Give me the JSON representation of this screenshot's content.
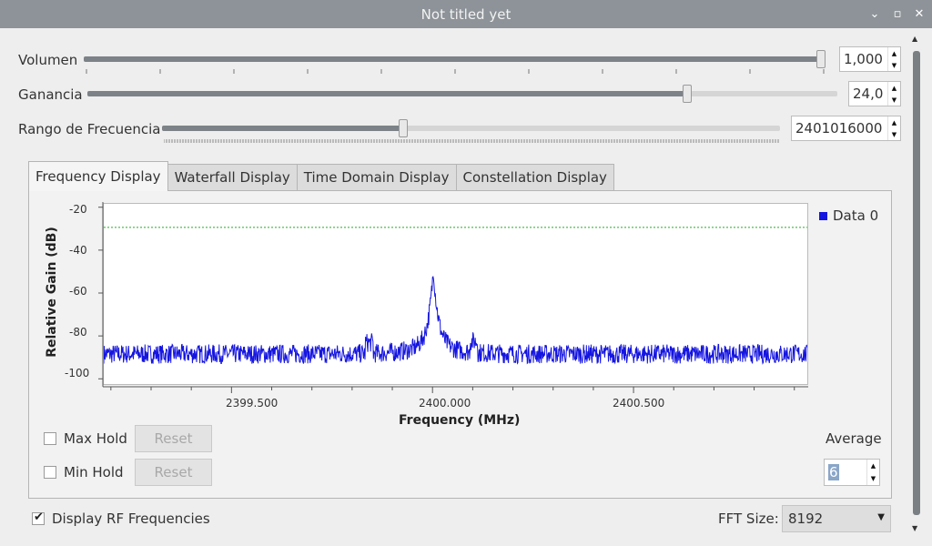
{
  "window": {
    "title": "Not titled yet",
    "buttons": {
      "minimize": "⌄",
      "maximize": "▫",
      "close": "✕"
    }
  },
  "controls": {
    "volume": {
      "label": "Volumen",
      "value": "1,000",
      "fraction": 1.0
    },
    "gain": {
      "label": "Ganancia",
      "value": "24,0",
      "fraction": 0.8
    },
    "freq_range": {
      "label": "Rango de Frecuencia",
      "value": "2401016000",
      "fraction": 0.39
    }
  },
  "tabs": [
    {
      "label": "Frequency Display",
      "active": true
    },
    {
      "label": "Waterfall Display",
      "active": false
    },
    {
      "label": "Time Domain Display",
      "active": false
    },
    {
      "label": "Constellation Display",
      "active": false
    }
  ],
  "chart_data": {
    "type": "line",
    "xlabel": "Frequency (MHz)",
    "ylabel": "Relative Gain (dB)",
    "x_ticks": [
      "2399.500",
      "2400.000",
      "2400.500"
    ],
    "y_ticks": [
      "-20",
      "-40",
      "-60",
      "-80",
      "-100"
    ],
    "ylim": [
      -102,
      -18
    ],
    "xlim": [
      2399.18,
      2400.93
    ],
    "series": [
      {
        "name": "Data 0",
        "color": "#1515e0",
        "noise_floor": -88,
        "peak_x": 2400.0,
        "peak_y": -52
      }
    ],
    "threshold_line": {
      "y": -29,
      "color": "#22aa22"
    },
    "legend_position": "top-right"
  },
  "options": {
    "max_hold": {
      "label": "Max Hold",
      "checked": false,
      "reset": "Reset"
    },
    "min_hold": {
      "label": "Min Hold",
      "checked": false,
      "reset": "Reset"
    },
    "average": {
      "label": "Average",
      "value": "6"
    }
  },
  "bottom": {
    "display_rf": {
      "label": "Display RF Frequencies",
      "checked": true
    },
    "fft_size": {
      "label": "FFT Size:",
      "value": "8192"
    }
  }
}
